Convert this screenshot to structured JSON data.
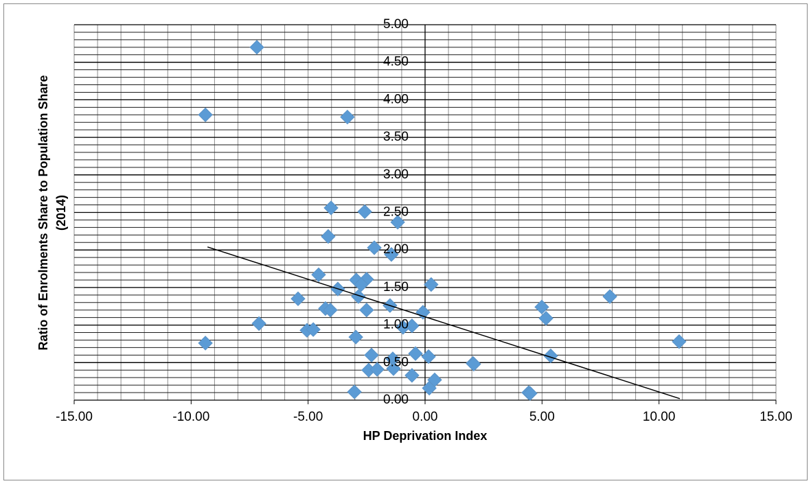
{
  "chart_data": {
    "type": "scatter",
    "xlabel": "HP Deprivation Index",
    "ylabel": [
      "Ratio of Enrolments Share to Population Share",
      "(2014)"
    ],
    "color": "#5b9bd5",
    "xlim": [
      -15,
      15
    ],
    "ylim": [
      0,
      5
    ],
    "xticks": [
      {
        "value": -15,
        "label": "-15.00"
      },
      {
        "value": -10,
        "label": "-10.00"
      },
      {
        "value": -5,
        "label": "-5.00"
      },
      {
        "value": 0,
        "label": "0.00"
      },
      {
        "value": 5,
        "label": "5.00"
      },
      {
        "value": 10,
        "label": "10.00"
      },
      {
        "value": 15,
        "label": "15.00"
      }
    ],
    "yticks": [
      {
        "value": 0,
        "label": "0.00"
      },
      {
        "value": 0.5,
        "label": "0.50"
      },
      {
        "value": 1,
        "label": "1.00"
      },
      {
        "value": 1.5,
        "label": "1.50"
      },
      {
        "value": 2,
        "label": "2.00"
      },
      {
        "value": 2.5,
        "label": "2.50"
      },
      {
        "value": 3,
        "label": "3.00"
      },
      {
        "value": 3.5,
        "label": "3.50"
      },
      {
        "value": 4,
        "label": "4.00"
      },
      {
        "value": 4.5,
        "label": "4.50"
      },
      {
        "value": 5,
        "label": "5.00"
      }
    ],
    "minor_grid_step": {
      "x": 1,
      "y": 0.1
    },
    "x": [
      -9.39,
      -9.39,
      -7.19,
      -7.1,
      -3.32,
      -4.02,
      -2.58,
      -1.17,
      -4.14,
      -2.17,
      -1.44,
      -4.55,
      -2.94,
      -2.5,
      -2.73,
      -3.73,
      0.26,
      -5.43,
      -2.85,
      -1.5,
      -4.26,
      -4.05,
      -2.5,
      -0.09,
      4.99,
      5.17,
      7.9,
      -0.56,
      -0.94,
      -5.05,
      -4.78,
      -2.96,
      10.86,
      -2.29,
      -0.41,
      0.15,
      -1.38,
      5.37,
      2.05,
      2.08,
      -2.41,
      -2.05,
      -1.35,
      -0.56,
      0.41,
      0.18,
      -3.02,
      4.43,
      4.49
    ],
    "values": [
      0.76,
      3.8,
      4.7,
      1.02,
      3.77,
      2.56,
      2.51,
      2.37,
      2.18,
      2.03,
      1.94,
      1.67,
      1.6,
      1.61,
      1.54,
      1.48,
      1.54,
      1.35,
      1.38,
      1.26,
      1.22,
      1.2,
      1.2,
      1.17,
      1.24,
      1.09,
      1.38,
      0.99,
      0.97,
      0.93,
      0.94,
      0.84,
      0.78,
      0.6,
      0.62,
      0.58,
      0.55,
      0.59,
      0.49,
      0.48,
      0.4,
      0.41,
      0.42,
      0.33,
      0.27,
      0.16,
      0.11,
      0.1,
      0.09
    ],
    "trendline": {
      "x": [
        -9.3,
        10.89
      ],
      "y": [
        2.04,
        0.02
      ],
      "color": "#000000"
    }
  }
}
